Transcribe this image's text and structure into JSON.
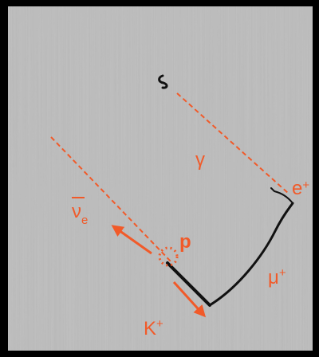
{
  "labels": {
    "gamma": "γ",
    "positron": {
      "base": "e",
      "sup": "+"
    },
    "antineutrino": {
      "base": "ν",
      "sub": "e"
    },
    "proton": "p",
    "muon": {
      "base": "μ",
      "sup": "+"
    },
    "kaon": {
      "base": "K",
      "sup": "+"
    }
  }
}
